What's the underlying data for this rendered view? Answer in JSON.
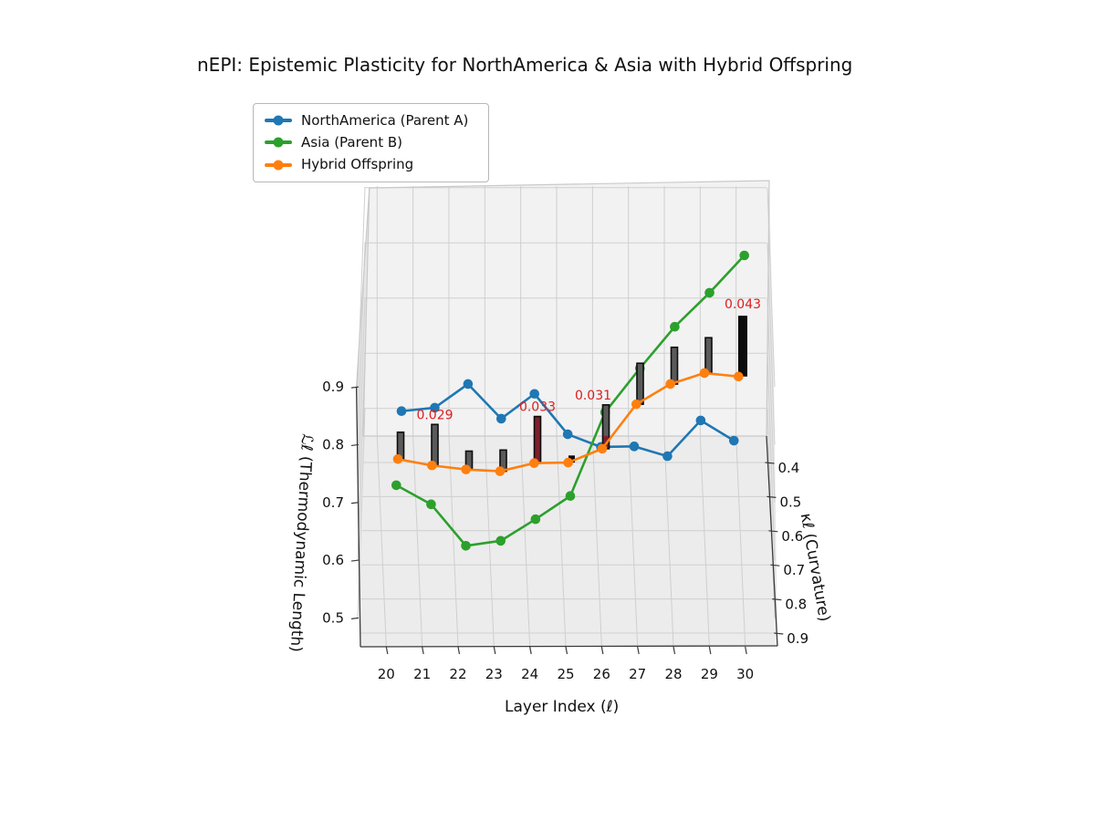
{
  "title": "nEPI: Epistemic Plasticity for NorthAmerica & Asia with Hybrid Offspring",
  "legend": {
    "items": [
      {
        "label": "NorthAmerica (Parent A)",
        "color": "#1f77b4"
      },
      {
        "label": "Asia (Parent B)",
        "color": "#2ca02c"
      },
      {
        "label": "Hybrid Offspring",
        "color": "#ff7f0e"
      }
    ]
  },
  "axes": {
    "x": {
      "label": "Layer Index (ℓ)",
      "ticks": [
        20,
        21,
        22,
        23,
        24,
        25,
        26,
        27,
        28,
        29,
        30
      ]
    },
    "y": {
      "label": "κℓ (Curvature)",
      "ticks": [
        0.4,
        0.5,
        0.6,
        0.7,
        0.8,
        0.9
      ]
    },
    "z": {
      "label": "ℒℓ (Thermodynamic Length)",
      "ticks": [
        0.9,
        0.8,
        0.7,
        0.6,
        0.5
      ]
    }
  },
  "chart_data": {
    "type": "line",
    "projection": "3d",
    "x": [
      20,
      21,
      22,
      23,
      24,
      25,
      26,
      27,
      28,
      29,
      30
    ],
    "series": [
      {
        "name": "NorthAmerica (Parent A)",
        "color": "#1f77b4",
        "L_values": [
          0.858,
          0.864,
          0.905,
          0.845,
          0.888,
          0.818,
          0.796,
          0.797,
          0.78,
          0.842,
          0.807
        ],
        "kappa_values": [
          0.88,
          0.88,
          0.88,
          0.88,
          0.88,
          0.88,
          0.88,
          0.88,
          0.88,
          0.88,
          0.88
        ]
      },
      {
        "name": "Asia (Parent B)",
        "color": "#2ca02c",
        "L_values": [
          0.673,
          0.65,
          0.6,
          0.606,
          0.632,
          0.66,
          0.761,
          0.814,
          0.864,
          0.905,
          0.95
        ],
        "kappa_values": [
          0.74,
          0.72,
          0.7,
          0.68,
          0.66,
          0.63,
          0.58,
          0.54,
          0.5,
          0.47,
          0.44
        ]
      },
      {
        "name": "Hybrid Offspring",
        "color": "#ff7f0e",
        "L_values": [
          0.775,
          0.764,
          0.757,
          0.754,
          0.768,
          0.769,
          0.793,
          0.87,
          0.905,
          0.924,
          0.918
        ],
        "kappa_values": [
          0.72,
          0.72,
          0.72,
          0.72,
          0.72,
          0.72,
          0.72,
          0.72,
          0.72,
          0.72,
          0.72
        ]
      }
    ],
    "nepi_bars": {
      "label": "nEPI",
      "values": [
        0.019,
        0.029,
        0.013,
        0.015,
        0.033,
        0.005,
        0.031,
        0.029,
        0.026,
        0.025,
        0.043
      ],
      "colors": [
        "gray",
        "gray",
        "gray",
        "gray",
        "red",
        "black",
        "gray-red",
        "gray",
        "gray",
        "gray",
        "black"
      ]
    },
    "annotations": [
      {
        "layer": 21,
        "text": "0.029"
      },
      {
        "layer": 24,
        "text": "0.033"
      },
      {
        "layer": 26,
        "text": "0.031"
      },
      {
        "layer": 30,
        "text": "0.043"
      }
    ],
    "annotation_color": "#dc1e1e",
    "xlim": [
      20,
      30
    ],
    "ylim": [
      0.4,
      0.9
    ],
    "zlim": [
      0.45,
      0.91
    ],
    "grid": true,
    "legend_position": "upper-left"
  }
}
